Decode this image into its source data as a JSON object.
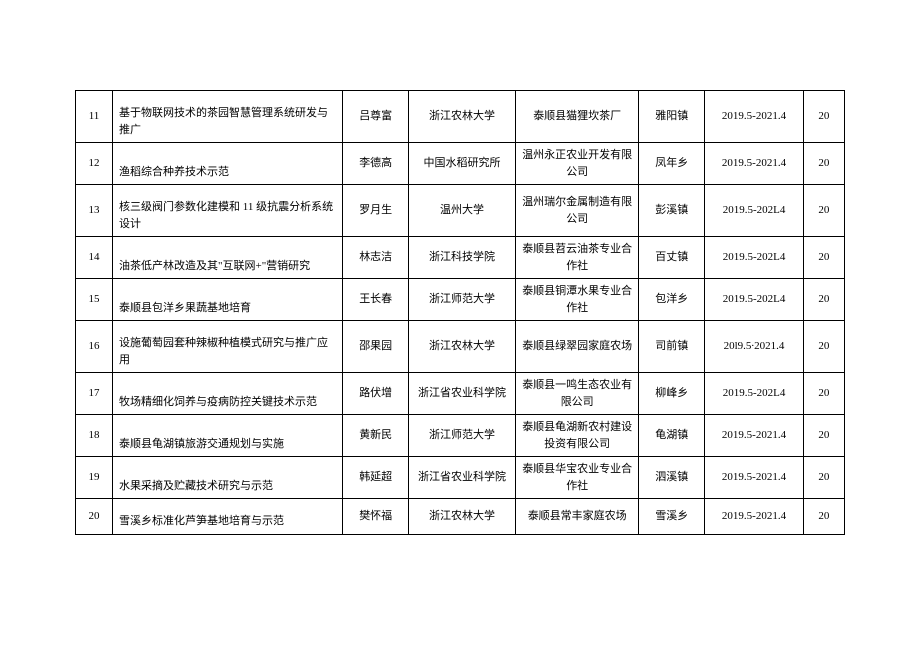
{
  "table": {
    "columns": [
      "idx",
      "name",
      "person",
      "univ",
      "company",
      "town",
      "date",
      "count"
    ],
    "rows": [
      {
        "idx": "11",
        "name": "基于物联网技术的茶园智慧管理系统研发与推广",
        "person": "吕尊富",
        "univ": "浙江农林大学",
        "company": "泰顺县猫狸坎茶厂",
        "town": "雅阳镇",
        "date": "2019.5-2021.4",
        "count": "20"
      },
      {
        "idx": "12",
        "name": "渔稻综合种养技术示范",
        "person": "李德高",
        "univ": "中国水稻研究所",
        "company": "温州永正农业开发有限公司",
        "town": "凤年乡",
        "date": "2019.5-2021.4",
        "count": "20"
      },
      {
        "idx": "13",
        "name": "核三级阀门参数化建模和 11 级抗震分析系统设计",
        "person": "罗月生",
        "univ": "温州大学",
        "company": "温州瑞尔金属制造有限公司",
        "town": "彭溪镇",
        "date": "2019.5-202L4",
        "count": "20"
      },
      {
        "idx": "14",
        "name": "油茶低产林改造及其\"互联网+\"营销研究",
        "person": "林志洁",
        "univ": "浙江科技学院",
        "company": "泰顺县苕云油茶专业合作社",
        "town": "百丈镇",
        "date": "2019.5-202L4",
        "count": "20"
      },
      {
        "idx": "15",
        "name": "泰顺县包洋乡果蔬基地培育",
        "person": "王长春",
        "univ": "浙江师范大学",
        "company": "泰顺县铜潭水果专业合作社",
        "town": "包洋乡",
        "date": "2019.5-202L4",
        "count": "20"
      },
      {
        "idx": "16",
        "name": "设施葡萄园套种辣椒种植模式研究与推广应用",
        "person": "邵果园",
        "univ": "浙江农林大学",
        "company": "泰顺县绿翠园家庭农场",
        "town": "司前镇",
        "date": "20l9.5∙2021.4",
        "count": "20"
      },
      {
        "idx": "17",
        "name": "牧场精细化饲养与疫病防控关键技术示范",
        "person": "路伏增",
        "univ": "浙江省农业科学院",
        "company": "泰顺县一鸣生态农业有限公司",
        "town": "柳峰乡",
        "date": "2019.5-202L4",
        "count": "20"
      },
      {
        "idx": "18",
        "name": "泰顺县龟湖镇旅游交通规划与实施",
        "person": "黄新民",
        "univ": "浙江师范大学",
        "company": "泰顺县龟湖新农村建设投资有限公司",
        "town": "龟湖镇",
        "date": "2019.5-2021.4",
        "count": "20"
      },
      {
        "idx": "19",
        "name": "水果采摘及贮藏技术研究与示范",
        "person": "韩延超",
        "univ": "浙江省农业科学院",
        "company": "泰顺县华宝农业专业合作社",
        "town": "泗溪镇",
        "date": "2019.5-2021.4",
        "count": "20"
      },
      {
        "idx": "20",
        "name": "雪溪乡标准化芦笋基地培育与示范",
        "person": "樊怀福",
        "univ": "浙江农林大学",
        "company": "泰顺县常丰家庭农场",
        "town": "雪溪乡",
        "date": "2019.5-2021.4",
        "count": "20"
      }
    ]
  }
}
